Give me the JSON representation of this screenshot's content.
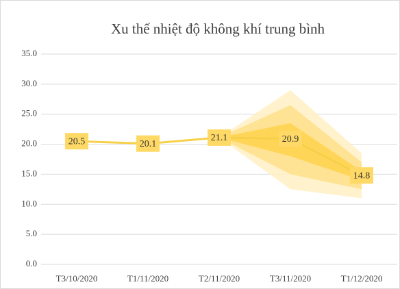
{
  "chart_data": {
    "type": "line",
    "title": "Xu thế nhiệt độ không khí trung bình",
    "categories": [
      "T3/10/2020",
      "T1/11/2020",
      "T2/11/2020",
      "T3/11/2020",
      "T1/12/2020"
    ],
    "series": [
      {
        "color": "#f7d04a",
        "values": [
          20.5,
          20.1,
          21.1,
          20.9,
          14.8
        ]
      }
    ],
    "bands": [
      {
        "color": "#fff0c4",
        "upper": [
          null,
          null,
          21.1,
          29.0,
          18.5
        ],
        "lower": [
          null,
          null,
          21.1,
          12.5,
          11.0
        ]
      },
      {
        "color": "#ffe08a",
        "upper": [
          null,
          null,
          21.1,
          26.5,
          17.0
        ],
        "lower": [
          null,
          null,
          21.1,
          15.0,
          12.5
        ]
      },
      {
        "color": "#ffd24d",
        "upper": [
          null,
          null,
          21.1,
          23.5,
          15.5
        ],
        "lower": [
          null,
          null,
          21.1,
          18.0,
          14.0
        ]
      }
    ],
    "label_color": "#ffd966",
    "ylim": [
      0,
      35
    ],
    "yticks": [
      {
        "value": 0,
        "label": "0.0"
      },
      {
        "value": 5,
        "label": "5.0"
      },
      {
        "value": 10,
        "label": "10.0"
      },
      {
        "value": 15,
        "label": "15.0"
      },
      {
        "value": 20,
        "label": "20.0"
      },
      {
        "value": 25,
        "label": "25.0"
      },
      {
        "value": 30,
        "label": "30.0"
      },
      {
        "value": 35,
        "label": "35.0"
      }
    ],
    "grid": true
  }
}
